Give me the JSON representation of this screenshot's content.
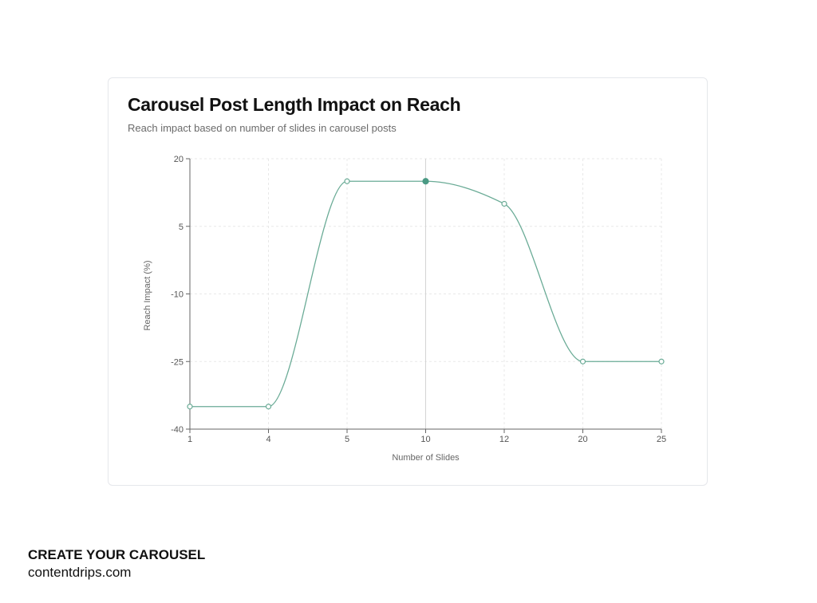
{
  "chart_data": {
    "type": "line",
    "title": "Carousel Post Length Impact on Reach",
    "subtitle": "Reach impact based on number of slides in carousel posts",
    "xlabel": "Number of Slides",
    "ylabel": "Reach Impact (%)",
    "categories": [
      "1",
      "4",
      "5",
      "10",
      "12",
      "20",
      "25"
    ],
    "series": [
      {
        "values": [
          -35,
          -35,
          15,
          15,
          10,
          -25,
          -25
        ],
        "color": "#6aab96"
      }
    ],
    "highlighted_category": "10",
    "yticks": [
      20,
      5,
      -10,
      -25,
      -40
    ],
    "ylim": [
      -40,
      20
    ],
    "grid": true
  },
  "footer": {
    "cta": "CREATE YOUR CAROUSEL",
    "site": "contentdrips.com"
  }
}
